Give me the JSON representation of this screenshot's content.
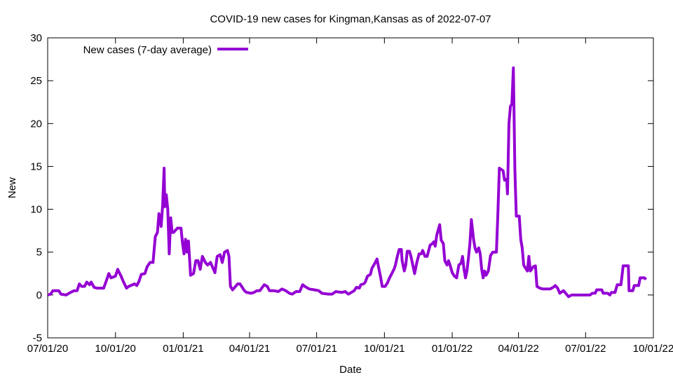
{
  "chart_data": {
    "type": "line",
    "title": "COVID-19 new cases for Kingman,Kansas as of 2022-07-07",
    "xlabel": "Date",
    "ylabel": "New",
    "x_units": "days since 2020-07-01",
    "xlim": [
      0,
      822
    ],
    "ylim": [
      -5,
      30
    ],
    "yticks": [
      -5,
      0,
      5,
      10,
      15,
      20,
      25,
      30
    ],
    "xticks": [
      {
        "value": 0,
        "label": "07/01/20"
      },
      {
        "value": 92,
        "label": "10/01/20"
      },
      {
        "value": 184,
        "label": "01/01/21"
      },
      {
        "value": 274,
        "label": "04/01/21"
      },
      {
        "value": 365,
        "label": "07/01/21"
      },
      {
        "value": 457,
        "label": "10/01/21"
      },
      {
        "value": 549,
        "label": "01/01/22"
      },
      {
        "value": 639,
        "label": "04/01/22"
      },
      {
        "value": 730,
        "label": "07/01/22"
      },
      {
        "value": 822,
        "label": "10/01/22"
      }
    ],
    "grid": false,
    "legend_position": "top-left",
    "color": "#9400d3",
    "series": [
      {
        "name": "New cases (7-day average)",
        "x": [
          0,
          4,
          7,
          15,
          18,
          25,
          31,
          36,
          40,
          43,
          46,
          50,
          53,
          57,
          59,
          63,
          67,
          76,
          79,
          83,
          86,
          92,
          95,
          99,
          103,
          107,
          110,
          118,
          121,
          124,
          127,
          132,
          135,
          139,
          143,
          146,
          149,
          151,
          154,
          156,
          158,
          159,
          161,
          163,
          165,
          167,
          169,
          171,
          176,
          181,
          183,
          185,
          187,
          189,
          191,
          194,
          198,
          201,
          204,
          207,
          210,
          214,
          217,
          221,
          225,
          227,
          230,
          234,
          237,
          240,
          244,
          246,
          248,
          251,
          255,
          258,
          261,
          264,
          267,
          270,
          276,
          280,
          284,
          288,
          294,
          298,
          301,
          307,
          313,
          318,
          323,
          328,
          332,
          337,
          342,
          346,
          349,
          355,
          362,
          368,
          372,
          381,
          386,
          391,
          399,
          404,
          408,
          412,
          416,
          419,
          423,
          425,
          429,
          431,
          434,
          438,
          440,
          444,
          447,
          449,
          452,
          454,
          458,
          461,
          464,
          467,
          470,
          472,
          474,
          477,
          480,
          481,
          484,
          486,
          488,
          491,
          493,
          495,
          498,
          501,
          504,
          507,
          509,
          512,
          515,
          519,
          522,
          524,
          526,
          528,
          532,
          534,
          537,
          539,
          542,
          544,
          546,
          549,
          552,
          555,
          558,
          561,
          563,
          565,
          567,
          569,
          571,
          573,
          575,
          578,
          580,
          582,
          585,
          587,
          589,
          591,
          593,
          595,
          598,
          601,
          604,
          609,
          611,
          613,
          618,
          620,
          623,
          624,
          626,
          628,
          630,
          632,
          634,
          635,
          636,
          640,
          642,
          644,
          646,
          648,
          651,
          653,
          655,
          659,
          662,
          664,
          668,
          672,
          677,
          682,
          686,
          689,
          692,
          695,
          700,
          703,
          707,
          711,
          728,
          736,
          739,
          743,
          745,
          752,
          754,
          760,
          763,
          765,
          770,
          773,
          778,
          781,
          788,
          789,
          794,
          796,
          802,
          804,
          810,
          812
        ],
        "y": [
          0,
          0.1,
          0.5,
          0.5,
          0.1,
          0,
          0.3,
          0.5,
          0.5,
          1.3,
          1.0,
          1.0,
          1.5,
          1.2,
          1.5,
          0.9,
          0.8,
          0.8,
          1.5,
          2.5,
          2.0,
          2.2,
          3.0,
          2.3,
          1.5,
          0.8,
          1.0,
          1.3,
          1.1,
          1.6,
          2.4,
          2.5,
          3.3,
          3.8,
          3.8,
          6.8,
          7.3,
          9.5,
          8.0,
          10.5,
          14.8,
          10.3,
          11.7,
          10.0,
          4.8,
          9.0,
          7.3,
          7.3,
          7.8,
          7.8,
          6.0,
          4.8,
          6.5,
          5.0,
          6.3,
          2.3,
          2.5,
          4.0,
          4.0,
          3.0,
          4.5,
          3.8,
          3.5,
          3.8,
          3.0,
          2.6,
          4.5,
          4.7,
          3.8,
          5.0,
          5.2,
          4.5,
          1.0,
          0.6,
          1.0,
          1.3,
          1.3,
          0.9,
          0.5,
          0.3,
          0.2,
          0.3,
          0.5,
          0.5,
          1.2,
          1.0,
          0.5,
          0.5,
          0.4,
          0.7,
          0.5,
          0.2,
          0.1,
          0.4,
          0.4,
          1.2,
          1.0,
          0.7,
          0.6,
          0.5,
          0.2,
          0.1,
          0.1,
          0.4,
          0.3,
          0.4,
          0.1,
          0.3,
          0.5,
          0.9,
          0.8,
          1.2,
          1.3,
          1.5,
          2.2,
          2.4,
          3.1,
          3.7,
          4.2,
          3.3,
          2.0,
          1.0,
          1.0,
          1.4,
          2.0,
          2.5,
          3.0,
          3.5,
          4.3,
          5.3,
          5.3,
          4.0,
          2.8,
          3.5,
          5.1,
          5.1,
          4.5,
          3.7,
          2.5,
          3.8,
          4.8,
          4.8,
          5.2,
          4.5,
          4.5,
          5.8,
          6.0,
          6.2,
          5.7,
          7.0,
          8.2,
          6.4,
          6.0,
          4.0,
          3.5,
          4.0,
          3.5,
          2.6,
          2.2,
          2.0,
          3.5,
          3.7,
          4.5,
          3.0,
          2.0,
          2.8,
          4.3,
          6.0,
          8.8,
          6.5,
          5.5,
          5.0,
          5.5,
          4.8,
          3.0,
          2.0,
          2.8,
          2.3,
          2.8,
          4.6,
          5.0,
          5.0,
          9.5,
          14.8,
          14.5,
          13.4,
          13.5,
          11.8,
          20.0,
          22.0,
          22.3,
          26.5,
          14.8,
          12.0,
          9.2,
          9.2,
          6.5,
          5.5,
          3.5,
          3.2,
          2.8,
          4.5,
          2.8,
          3.3,
          3.4,
          1.0,
          0.8,
          0.7,
          0.7,
          0.7,
          0.9,
          1.1,
          0.8,
          0.2,
          0.5,
          0.2,
          -0.2,
          0,
          0,
          0,
          0.2,
          0.2,
          0.6,
          0.6,
          0.2,
          0.2,
          0,
          0.3,
          0.3,
          1.2,
          1.2,
          3.4,
          3.4,
          0.5,
          0.5,
          1.1,
          1.1,
          2.0,
          2.0,
          1.8
        ]
      }
    ]
  }
}
